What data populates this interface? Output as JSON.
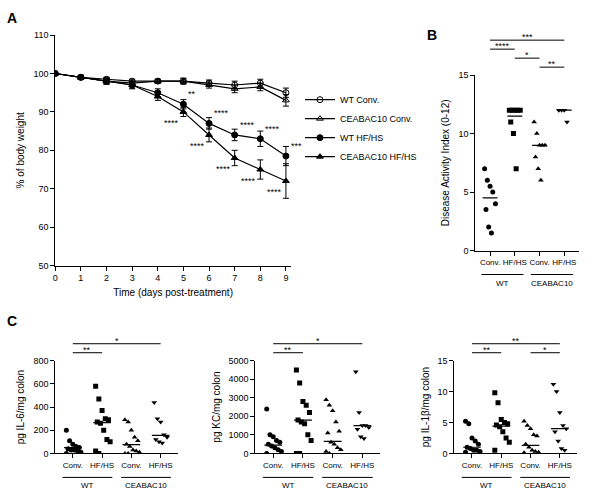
{
  "chart_data": [
    {
      "type": "line",
      "title": "A",
      "x_label": "Time (days post-treatment)",
      "y_label": "% of body weight",
      "x": [
        0,
        1,
        2,
        3,
        4,
        5,
        6,
        7,
        8,
        9
      ],
      "xlim": [
        0,
        9.2
      ],
      "xticks": [
        0,
        1,
        2,
        3,
        4,
        5,
        6,
        7,
        8,
        9
      ],
      "ylim": [
        50,
        110
      ],
      "yticks": [
        50,
        60,
        70,
        80,
        90,
        100,
        110
      ],
      "grid": false,
      "legend": "right",
      "series": [
        {
          "name": "WT Conv.",
          "color": "#000000",
          "marker": "circle-open",
          "line_style": "solid",
          "values": [
            100,
            99,
            98.5,
            98,
            98,
            98,
            97.5,
            97,
            97.5,
            95
          ],
          "errors": [
            0,
            0.5,
            0.5,
            0.5,
            0.5,
            0.8,
            0.8,
            1,
            1,
            1.2
          ]
        },
        {
          "name": "CEABAC10 Conv.",
          "color": "#000000",
          "marker": "triangle-up-open",
          "line_style": "solid",
          "values": [
            100,
            99,
            98,
            97.5,
            98,
            98,
            97,
            96,
            96.5,
            93
          ],
          "errors": [
            0,
            0.5,
            0.5,
            0.5,
            0.5,
            0.6,
            0.8,
            1,
            1,
            1.5
          ]
        },
        {
          "name": "WT HF/HS",
          "color": "#000000",
          "marker": "circle",
          "line_style": "solid",
          "values": [
            100,
            99,
            98,
            97,
            95,
            92,
            87,
            84,
            83,
            78.5
          ],
          "errors": [
            0,
            0.5,
            0.8,
            0.8,
            1,
            1.2,
            1.5,
            1.5,
            2,
            2.5
          ],
          "significance": [
            null,
            null,
            null,
            null,
            null,
            "**",
            "****",
            "****",
            "****",
            "***"
          ]
        },
        {
          "name": "CEABAC10 HF/HS",
          "color": "#000000",
          "marker": "triangle-up",
          "line_style": "solid",
          "values": [
            100,
            99,
            98,
            97,
            94,
            90,
            84,
            78,
            75,
            72
          ],
          "errors": [
            0,
            0.5,
            0.8,
            1,
            1,
            1.2,
            1.8,
            2,
            2.5,
            4.5
          ],
          "significance": [
            null,
            null,
            null,
            null,
            null,
            "****",
            "****",
            "****",
            "****",
            "****"
          ]
        }
      ]
    },
    {
      "type": "dot",
      "title": "B",
      "y_label": "Disease Activity Index (0-12)",
      "ylim": [
        0,
        15
      ],
      "yticks": [
        0,
        5,
        10,
        15
      ],
      "grid": false,
      "series": [
        {
          "name": "Conv.",
          "group": "WT",
          "marker": "circle",
          "color": "#000000",
          "values": [
            7,
            6,
            5.5,
            5,
            4,
            3.5,
            2,
            1.5
          ],
          "mean": 4.5
        },
        {
          "name": "HF/HS",
          "group": "WT",
          "marker": "square",
          "color": "#000000",
          "values": [
            12,
            12,
            12,
            12,
            12,
            11,
            10,
            7
          ],
          "mean": 11.5
        },
        {
          "name": "Conv.",
          "group": "CEABAC10",
          "marker": "triangle-up",
          "color": "#000000",
          "values": [
            11,
            10,
            9,
            9,
            9,
            8,
            7,
            6
          ],
          "mean": 9
        },
        {
          "name": "HF/HS",
          "group": "CEABAC10",
          "marker": "triangle-down",
          "color": "#000000",
          "values": [
            12,
            12,
            12,
            11
          ],
          "mean": 12
        }
      ],
      "significance": [
        {
          "from": 2,
          "to": 3,
          "label": "**"
        },
        {
          "from": 1,
          "to": 2,
          "label": "*"
        },
        {
          "from": 0,
          "to": 1,
          "label": "****"
        },
        {
          "from": 0,
          "to": 3,
          "label": "***"
        }
      ]
    },
    {
      "type": "dot",
      "title": "C",
      "y_label": "pg IL-6/mg colon",
      "ylim": [
        0,
        800
      ],
      "yticks": [
        0,
        200,
        400,
        600,
        800
      ],
      "grid": false,
      "series": [
        {
          "name": "Conv.",
          "group": "WT",
          "marker": "circle",
          "color": "#000000",
          "values": [
            200,
            110,
            80,
            60,
            50,
            40,
            30,
            30,
            20,
            10,
            0
          ],
          "mean": 50
        },
        {
          "name": "HF/HS",
          "group": "WT",
          "marker": "square",
          "color": "#000000",
          "values": [
            580,
            470,
            370,
            300,
            290,
            270,
            260,
            200,
            120,
            100,
            20,
            0
          ],
          "mean": 265
        },
        {
          "name": "Conv.",
          "group": "CEABAC10",
          "marker": "triangle-up",
          "color": "#000000",
          "values": [
            290,
            270,
            200,
            140,
            110,
            80,
            60,
            30,
            20,
            10,
            0,
            0
          ],
          "mean": 75
        },
        {
          "name": "HF/HS",
          "group": "CEABAC10",
          "marker": "triangle-down",
          "color": "#000000",
          "values": [
            440,
            300,
            270,
            160,
            140,
            120,
            100,
            90
          ],
          "mean": 155
        }
      ],
      "significance": [
        {
          "from": 0,
          "to": 1,
          "label": "**"
        },
        {
          "from": 0,
          "to": 3,
          "label": "*"
        }
      ]
    },
    {
      "type": "dot",
      "y_label": "pg KC/mg colon",
      "ylim": [
        0,
        5000
      ],
      "yticks": [
        0,
        1000,
        2000,
        3000,
        4000,
        5000
      ],
      "grid": false,
      "series": [
        {
          "name": "Conv.",
          "group": "WT",
          "marker": "circle",
          "color": "#000000",
          "values": [
            2400,
            1000,
            900,
            700,
            600,
            500,
            400,
            300,
            200,
            100,
            0
          ],
          "mean": 450
        },
        {
          "name": "HF/HS",
          "group": "WT",
          "marker": "square",
          "color": "#000000",
          "values": [
            4500,
            3800,
            2800,
            2600,
            2200,
            1800,
            1700,
            1600,
            1000,
            700,
            0,
            0
          ],
          "mean": 1800
        },
        {
          "name": "Conv.",
          "group": "CEABAC10",
          "marker": "triangle-up",
          "color": "#000000",
          "values": [
            2900,
            2600,
            2300,
            1700,
            1200,
            1100,
            600,
            500,
            300,
            200,
            100,
            0
          ],
          "mean": 650
        },
        {
          "name": "HF/HS",
          "group": "CEABAC10",
          "marker": "triangle-down",
          "color": "#000000",
          "values": [
            4400,
            2200,
            1500,
            1500,
            1400,
            1300,
            900,
            800
          ],
          "mean": 1500
        }
      ],
      "significance": [
        {
          "from": 0,
          "to": 1,
          "label": "**"
        },
        {
          "from": 0,
          "to": 3,
          "label": "*"
        }
      ]
    },
    {
      "type": "dot",
      "y_label": "pg IL-1β/mg colon",
      "ylim": [
        0,
        15
      ],
      "yticks": [
        0,
        5,
        10,
        15
      ],
      "grid": false,
      "series": [
        {
          "name": "Conv.",
          "group": "WT",
          "marker": "circle",
          "color": "#000000",
          "values": [
            5.2,
            4.8,
            2.5,
            2,
            1.5,
            1,
            0.8,
            0.5,
            0.5,
            0.3,
            0.2
          ],
          "mean": 1
        },
        {
          "name": "HF/HS",
          "group": "WT",
          "marker": "square",
          "color": "#000000",
          "values": [
            9.8,
            8.2,
            5.5,
            5,
            4.8,
            4.6,
            4.3,
            3.5,
            2.5,
            1.8,
            0.5
          ],
          "mean": 4.4
        },
        {
          "name": "Conv.",
          "group": "CEABAC10",
          "marker": "triangle-up",
          "color": "#000000",
          "values": [
            5.2,
            4.5,
            4,
            3,
            2.8,
            1.5,
            1,
            0.5,
            0.3,
            0.2,
            0.1
          ],
          "mean": 1.3
        },
        {
          "name": "HF/HS",
          "group": "CEABAC10",
          "marker": "triangle-down",
          "color": "#000000",
          "values": [
            11.2,
            10,
            6.6,
            4.5,
            4,
            3.5,
            2,
            0.8,
            0.5
          ],
          "mean": 4
        }
      ],
      "significance": [
        {
          "from": 0,
          "to": 1,
          "label": "**"
        },
        {
          "from": 2,
          "to": 3,
          "label": "*"
        },
        {
          "from": 0,
          "to": 3,
          "label": "**"
        }
      ]
    }
  ]
}
